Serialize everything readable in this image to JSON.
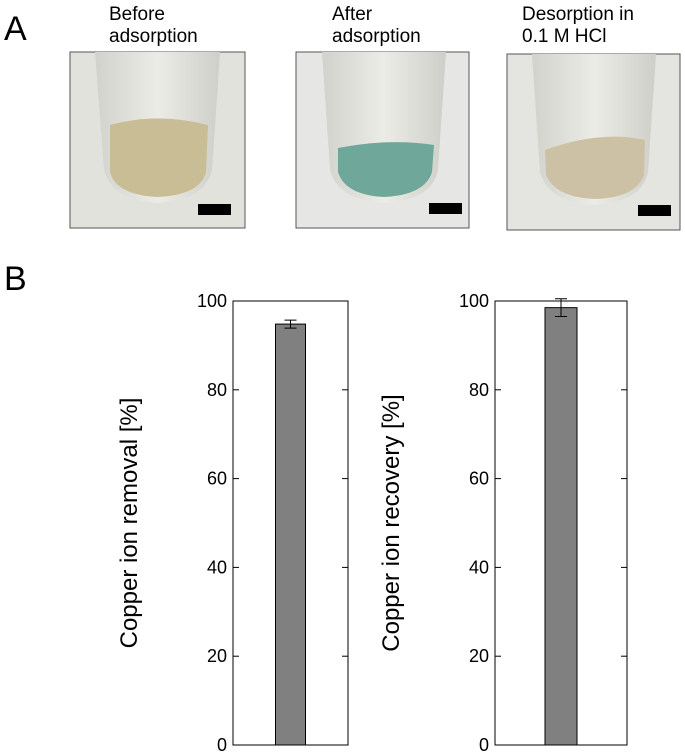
{
  "panel_labels": [
    "A",
    "B"
  ],
  "photos": [
    {
      "caption": [
        "Before",
        "adsorption"
      ]
    },
    {
      "caption": [
        "After",
        "adsorption"
      ]
    },
    {
      "caption": [
        "Desorption in",
        "0.1 M HCl"
      ]
    }
  ],
  "chart_data": [
    {
      "type": "bar",
      "ylabel": "Copper ion removal [%]",
      "categories": [
        null
      ],
      "values": [
        94.8
      ],
      "errors": [
        0.9
      ],
      "color": "#808080",
      "ylim": [
        0,
        100
      ],
      "yticks": [
        0,
        20,
        40,
        60,
        80,
        100
      ]
    },
    {
      "type": "bar",
      "ylabel": "Copper ion recovery [%]",
      "categories": [
        null
      ],
      "values": [
        98.5
      ],
      "errors": [
        2.0
      ],
      "color": "#808080",
      "ylim": [
        0,
        100
      ],
      "yticks": [
        0,
        20,
        40,
        60,
        80,
        100
      ]
    }
  ]
}
